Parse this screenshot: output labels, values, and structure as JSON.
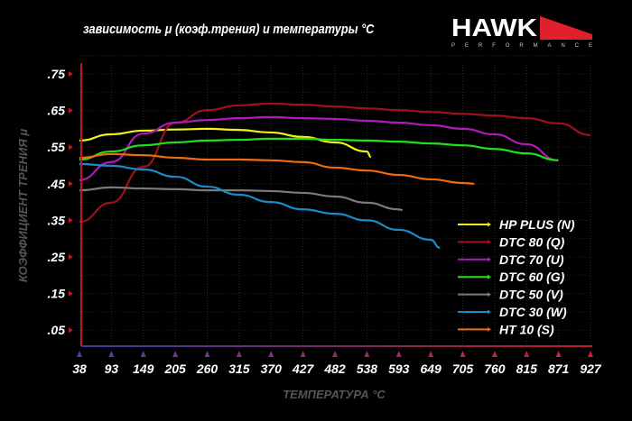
{
  "chart_data": {
    "type": "line",
    "title": "зависимость μ (коэф.трения) и температуры °C",
    "xlabel": "ТЕМПЕРАТУРА °C",
    "ylabel": "КОЭФФИЦИЕНТ ТРЕНИЯ μ",
    "x_ticks": [
      "38",
      "93",
      "149",
      "205",
      "260",
      "315",
      "370",
      "427",
      "482",
      "538",
      "593",
      "649",
      "705",
      "760",
      "815",
      "871",
      "927"
    ],
    "y_ticks": [
      ".75",
      ".65",
      ".55",
      ".45",
      ".35",
      ".25",
      ".15",
      ".05"
    ],
    "xlim": [
      38,
      927
    ],
    "ylim": [
      0.02,
      0.77
    ],
    "grid": true,
    "legend_position": "right",
    "series": [
      {
        "name": "HP PLUS (N)",
        "color": "#f2f21a",
        "x": [
          38,
          93,
          149,
          205,
          260,
          315,
          370,
          427,
          482,
          538,
          545
        ],
        "y": [
          0.568,
          0.585,
          0.595,
          0.598,
          0.6,
          0.597,
          0.59,
          0.578,
          0.563,
          0.538,
          0.523
        ]
      },
      {
        "name": "DTC 80 (Q)",
        "color": "#a0101a",
        "x": [
          38,
          93,
          149,
          205,
          260,
          315,
          370,
          427,
          482,
          538,
          593,
          649,
          705,
          760,
          815,
          871,
          927
        ],
        "y": [
          0.346,
          0.398,
          0.496,
          0.617,
          0.651,
          0.664,
          0.669,
          0.666,
          0.661,
          0.656,
          0.651,
          0.646,
          0.641,
          0.636,
          0.629,
          0.615,
          0.583
        ]
      },
      {
        "name": "DTC 70 (U)",
        "color": "#b01ab8",
        "x": [
          38,
          93,
          149,
          205,
          260,
          315,
          370,
          427,
          482,
          538,
          593,
          649,
          705,
          760,
          815,
          871
        ],
        "y": [
          0.46,
          0.509,
          0.587,
          0.617,
          0.624,
          0.629,
          0.632,
          0.629,
          0.627,
          0.622,
          0.617,
          0.61,
          0.6,
          0.585,
          0.558,
          0.514
        ]
      },
      {
        "name": "DTC 60 (G)",
        "color": "#22e01a",
        "x": [
          38,
          93,
          149,
          205,
          260,
          315,
          370,
          427,
          482,
          538,
          593,
          649,
          705,
          760,
          815,
          871
        ],
        "y": [
          0.516,
          0.538,
          0.555,
          0.563,
          0.568,
          0.57,
          0.573,
          0.573,
          0.57,
          0.568,
          0.565,
          0.56,
          0.555,
          0.545,
          0.533,
          0.514
        ]
      },
      {
        "name": "DTC 50 (V)",
        "color": "#7a7a7a",
        "x": [
          38,
          93,
          149,
          205,
          260,
          315,
          370,
          427,
          482,
          538,
          593,
          600
        ],
        "y": [
          0.432,
          0.44,
          0.437,
          0.435,
          0.432,
          0.432,
          0.43,
          0.425,
          0.415,
          0.398,
          0.38,
          0.378
        ]
      },
      {
        "name": "DTC 30 (W)",
        "color": "#1a8ac8",
        "x": [
          38,
          93,
          149,
          205,
          260,
          315,
          370,
          427,
          482,
          538,
          593,
          649,
          665
        ],
        "y": [
          0.504,
          0.499,
          0.489,
          0.469,
          0.442,
          0.42,
          0.4,
          0.38,
          0.368,
          0.35,
          0.324,
          0.297,
          0.275
        ]
      },
      {
        "name": "HT 10 (S)",
        "color": "#f06a10",
        "x": [
          38,
          93,
          149,
          205,
          260,
          315,
          370,
          427,
          482,
          538,
          593,
          649,
          705,
          725
        ],
        "y": [
          0.521,
          0.531,
          0.528,
          0.521,
          0.516,
          0.516,
          0.514,
          0.509,
          0.494,
          0.486,
          0.474,
          0.462,
          0.452,
          0.45
        ]
      }
    ]
  },
  "logo": {
    "text": "HAWK",
    "sub": "PERFORMANCE",
    "accent": "#e0202a"
  }
}
